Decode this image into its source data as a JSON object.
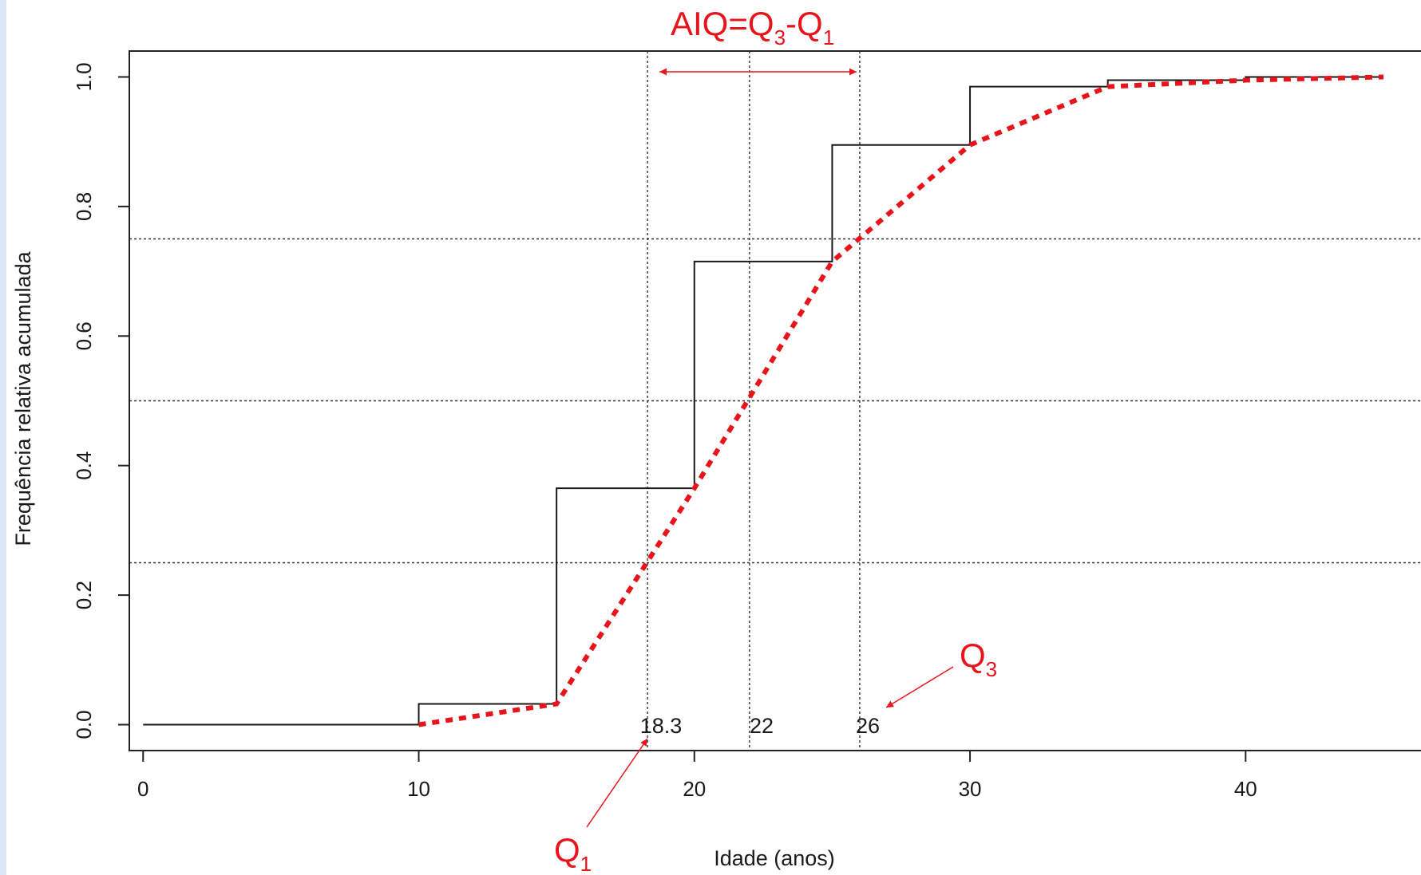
{
  "colors": {
    "axis": "#222222",
    "step": "#1a1a1a",
    "ogive": "#e8141c",
    "grid": "#333333",
    "annotation": "#e8141c",
    "left_strip": "#dbe6f5"
  },
  "chart_data": {
    "type": "line",
    "xlabel": "Idade (anos)",
    "ylabel": "Frequência relativa acumulada",
    "xlim": [
      -0.5,
      47
    ],
    "ylim": [
      -0.04,
      1.04
    ],
    "x_ticks": [
      0,
      10,
      20,
      30,
      40
    ],
    "x_tick_labels": [
      "0",
      "10",
      "20",
      "30",
      "40"
    ],
    "y_ticks": [
      0.0,
      0.2,
      0.4,
      0.6,
      0.8,
      1.0
    ],
    "y_tick_labels": [
      "0.0",
      "0.2",
      "0.4",
      "0.6",
      "0.8",
      "1.0"
    ],
    "grid": false,
    "series": [
      {
        "style": "step",
        "x": [
          0,
          10,
          15,
          20,
          25,
          30,
          35,
          40,
          45
        ],
        "y": [
          0.0,
          0.032,
          0.365,
          0.715,
          0.895,
          0.985,
          0.995,
          1.0,
          1.0
        ]
      },
      {
        "style": "dashed-line",
        "x": [
          10,
          15,
          20,
          25,
          30,
          35,
          40,
          45
        ],
        "y": [
          0.0,
          0.032,
          0.365,
          0.715,
          0.895,
          0.985,
          0.995,
          1.0
        ]
      }
    ],
    "reference_lines": {
      "horizontal": [
        0.25,
        0.5,
        0.75
      ],
      "vertical": [
        18.3,
        22,
        26
      ]
    },
    "value_labels": [
      {
        "x": 18.3,
        "text": "18.3"
      },
      {
        "x": 22,
        "text": "22"
      },
      {
        "x": 26,
        "text": "26"
      }
    ],
    "annotations": {
      "iqr_formula": {
        "main": "AIQ=Q",
        "sub1": "3",
        "mid": "-Q",
        "sub2": "1"
      },
      "q1": {
        "main": "Q",
        "sub": "1"
      },
      "q3": {
        "main": "Q",
        "sub": "3"
      },
      "iqr_arrow": {
        "from_x": 18.3,
        "to_x": 26
      }
    }
  }
}
